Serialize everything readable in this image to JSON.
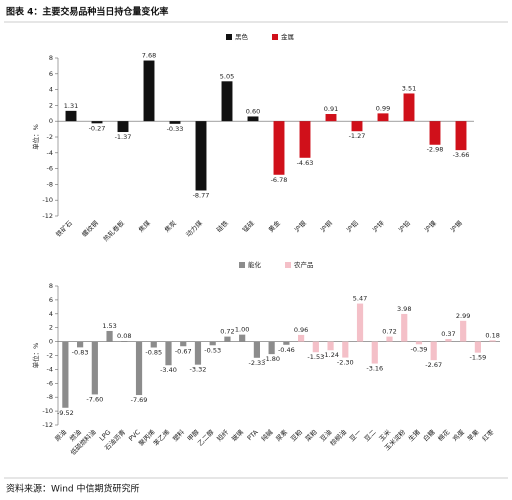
{
  "header": {
    "title": "图表 4：主要交易品种当日持仓量变化率"
  },
  "source": "资料来源：Wind  中信期货研究所",
  "chart_data": [
    {
      "type": "bar",
      "y_label": "单位：%",
      "ylim": [
        -12,
        8
      ],
      "yticks": [
        8,
        6,
        4,
        2,
        0,
        -2,
        -4,
        -6,
        -8,
        -10,
        -12
      ],
      "categories": [
        "铁矿石",
        "螺纹钢",
        "热轧卷板",
        "焦煤",
        "焦炭",
        "动力煤",
        "硅铁",
        "锰硅",
        "黄金",
        "沪银",
        "沪铜",
        "沪铝",
        "沪锌",
        "沪铅",
        "沪镍",
        "沪锡"
      ],
      "series": [
        {
          "name": "黑色",
          "color": "#111111",
          "values": [
            1.31,
            -0.27,
            -1.37,
            7.68,
            -0.33,
            -8.77,
            5.05,
            0.6,
            null,
            null,
            null,
            null,
            null,
            null,
            null,
            null
          ],
          "value_labels": [
            "1.31",
            "-0.27",
            "-1.37",
            "7.68",
            "-0.33",
            "-8.77",
            "5.05",
            "0.60",
            null,
            null,
            null,
            null,
            null,
            null,
            null,
            null
          ]
        },
        {
          "name": "金属",
          "color": "#d0101a",
          "values": [
            null,
            null,
            null,
            null,
            null,
            null,
            null,
            null,
            -6.78,
            -4.63,
            0.91,
            -1.27,
            0.99,
            3.51,
            -2.98,
            -3.66
          ],
          "value_labels": [
            null,
            null,
            null,
            null,
            null,
            null,
            null,
            null,
            "-6.78",
            "-4.63",
            "0.91",
            "-1.27",
            "0.99",
            "3.51",
            "-2.98",
            "-3.66"
          ]
        }
      ]
    },
    {
      "type": "bar",
      "y_label": "单位：%",
      "ylim": [
        -12,
        8
      ],
      "yticks": [
        8,
        6,
        4,
        2,
        0,
        -2,
        -4,
        -6,
        -8,
        -10,
        -12
      ],
      "categories": [
        "原油",
        "燃油",
        "低硫燃料油",
        "LPG",
        "石油沥青",
        "PVC",
        "聚丙烯",
        "苯乙烯",
        "塑料",
        "甲醇",
        "乙二醇",
        "短纤",
        "玻璃",
        "PTA",
        "纯碱",
        "尿素",
        "豆粕",
        "菜粕",
        "豆油",
        "棕榈油",
        "豆一",
        "豆二",
        "玉米",
        "玉米淀粉",
        "生猪",
        "白糖",
        "棉花",
        "鸡蛋",
        "苹果",
        "红枣"
      ],
      "series": [
        {
          "name": "能化",
          "color": "#8c8c8c",
          "values": [
            -9.52,
            -0.83,
            -7.6,
            1.53,
            0.08,
            -7.69,
            -0.85,
            -3.4,
            -0.67,
            -3.32,
            -0.53,
            0.72,
            1.0,
            -2.33,
            -1.8,
            -0.46,
            null,
            null,
            null,
            null,
            null,
            null,
            null,
            null,
            null,
            null,
            null,
            null,
            null,
            null
          ],
          "value_labels": [
            "-9.52",
            "-0.83",
            "-7.60",
            "1.53",
            "0.08",
            "-7.69",
            "-0.85",
            "-3.40",
            "-0.67",
            "-3.32",
            "-0.53",
            "0.72",
            "1.00",
            "-2.33",
            "-1.80",
            "-0.46",
            null,
            null,
            null,
            null,
            null,
            null,
            null,
            null,
            null,
            null,
            null,
            null,
            null,
            null
          ]
        },
        {
          "name": "农产品",
          "color": "#f4c0c8",
          "values": [
            null,
            null,
            null,
            null,
            null,
            null,
            null,
            null,
            null,
            null,
            null,
            null,
            null,
            null,
            null,
            null,
            0.96,
            -1.53,
            -1.24,
            -2.3,
            5.47,
            -3.16,
            0.72,
            3.98,
            -0.39,
            -2.67,
            0.37,
            2.99,
            -1.59,
            0.18
          ],
          "value_labels": [
            null,
            null,
            null,
            null,
            null,
            null,
            null,
            null,
            null,
            null,
            null,
            null,
            null,
            null,
            null,
            null,
            "0.96",
            "-1.53",
            "-1.24",
            "-2.30",
            "5.47",
            "-3.16",
            "0.72",
            "3.98",
            "-0.39",
            "-2.67",
            "0.37",
            "2.99",
            "-1.59",
            "0.18"
          ]
        }
      ]
    }
  ]
}
